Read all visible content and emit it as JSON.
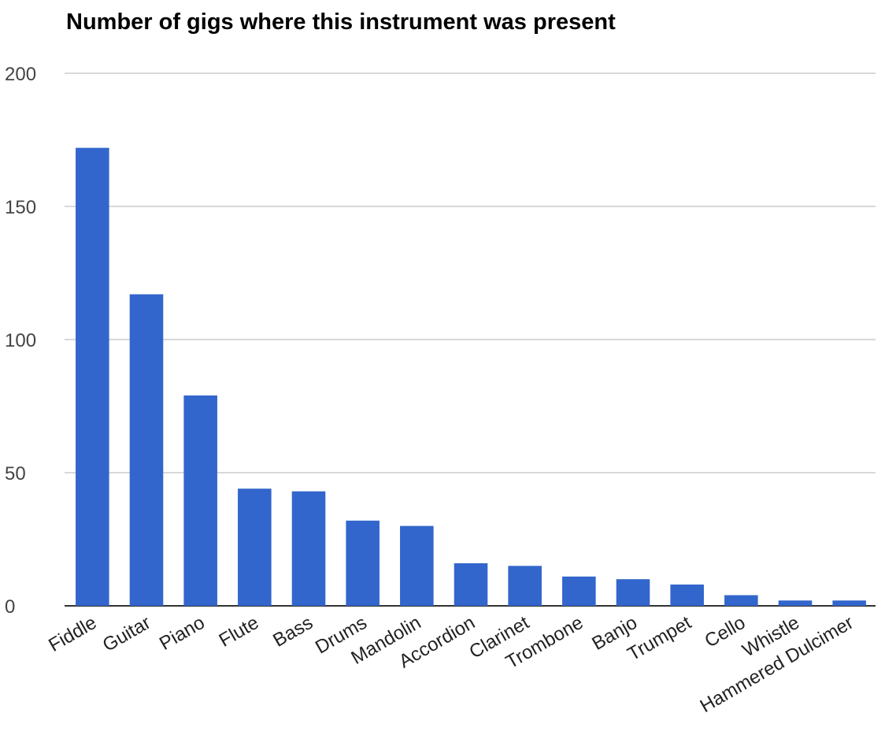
{
  "chart_data": {
    "type": "bar",
    "title": "Number of gigs where this instrument was present",
    "xlabel": "",
    "ylabel": "",
    "categories": [
      "Fiddle",
      "Guitar",
      "Piano",
      "Flute",
      "Bass",
      "Drums",
      "Mandolin",
      "Accordion",
      "Clarinet",
      "Trombone",
      "Banjo",
      "Trumpet",
      "Cello",
      "Whistle",
      "Hammered Dulcimer"
    ],
    "values": [
      172,
      117,
      79,
      44,
      43,
      32,
      30,
      16,
      15,
      11,
      10,
      8,
      4,
      2,
      2
    ],
    "ylim": [
      0,
      200
    ],
    "yticks": [
      0,
      50,
      100,
      150,
      200
    ],
    "grid": true,
    "legend": "none",
    "colors": {
      "bar": "#3366cc"
    }
  }
}
